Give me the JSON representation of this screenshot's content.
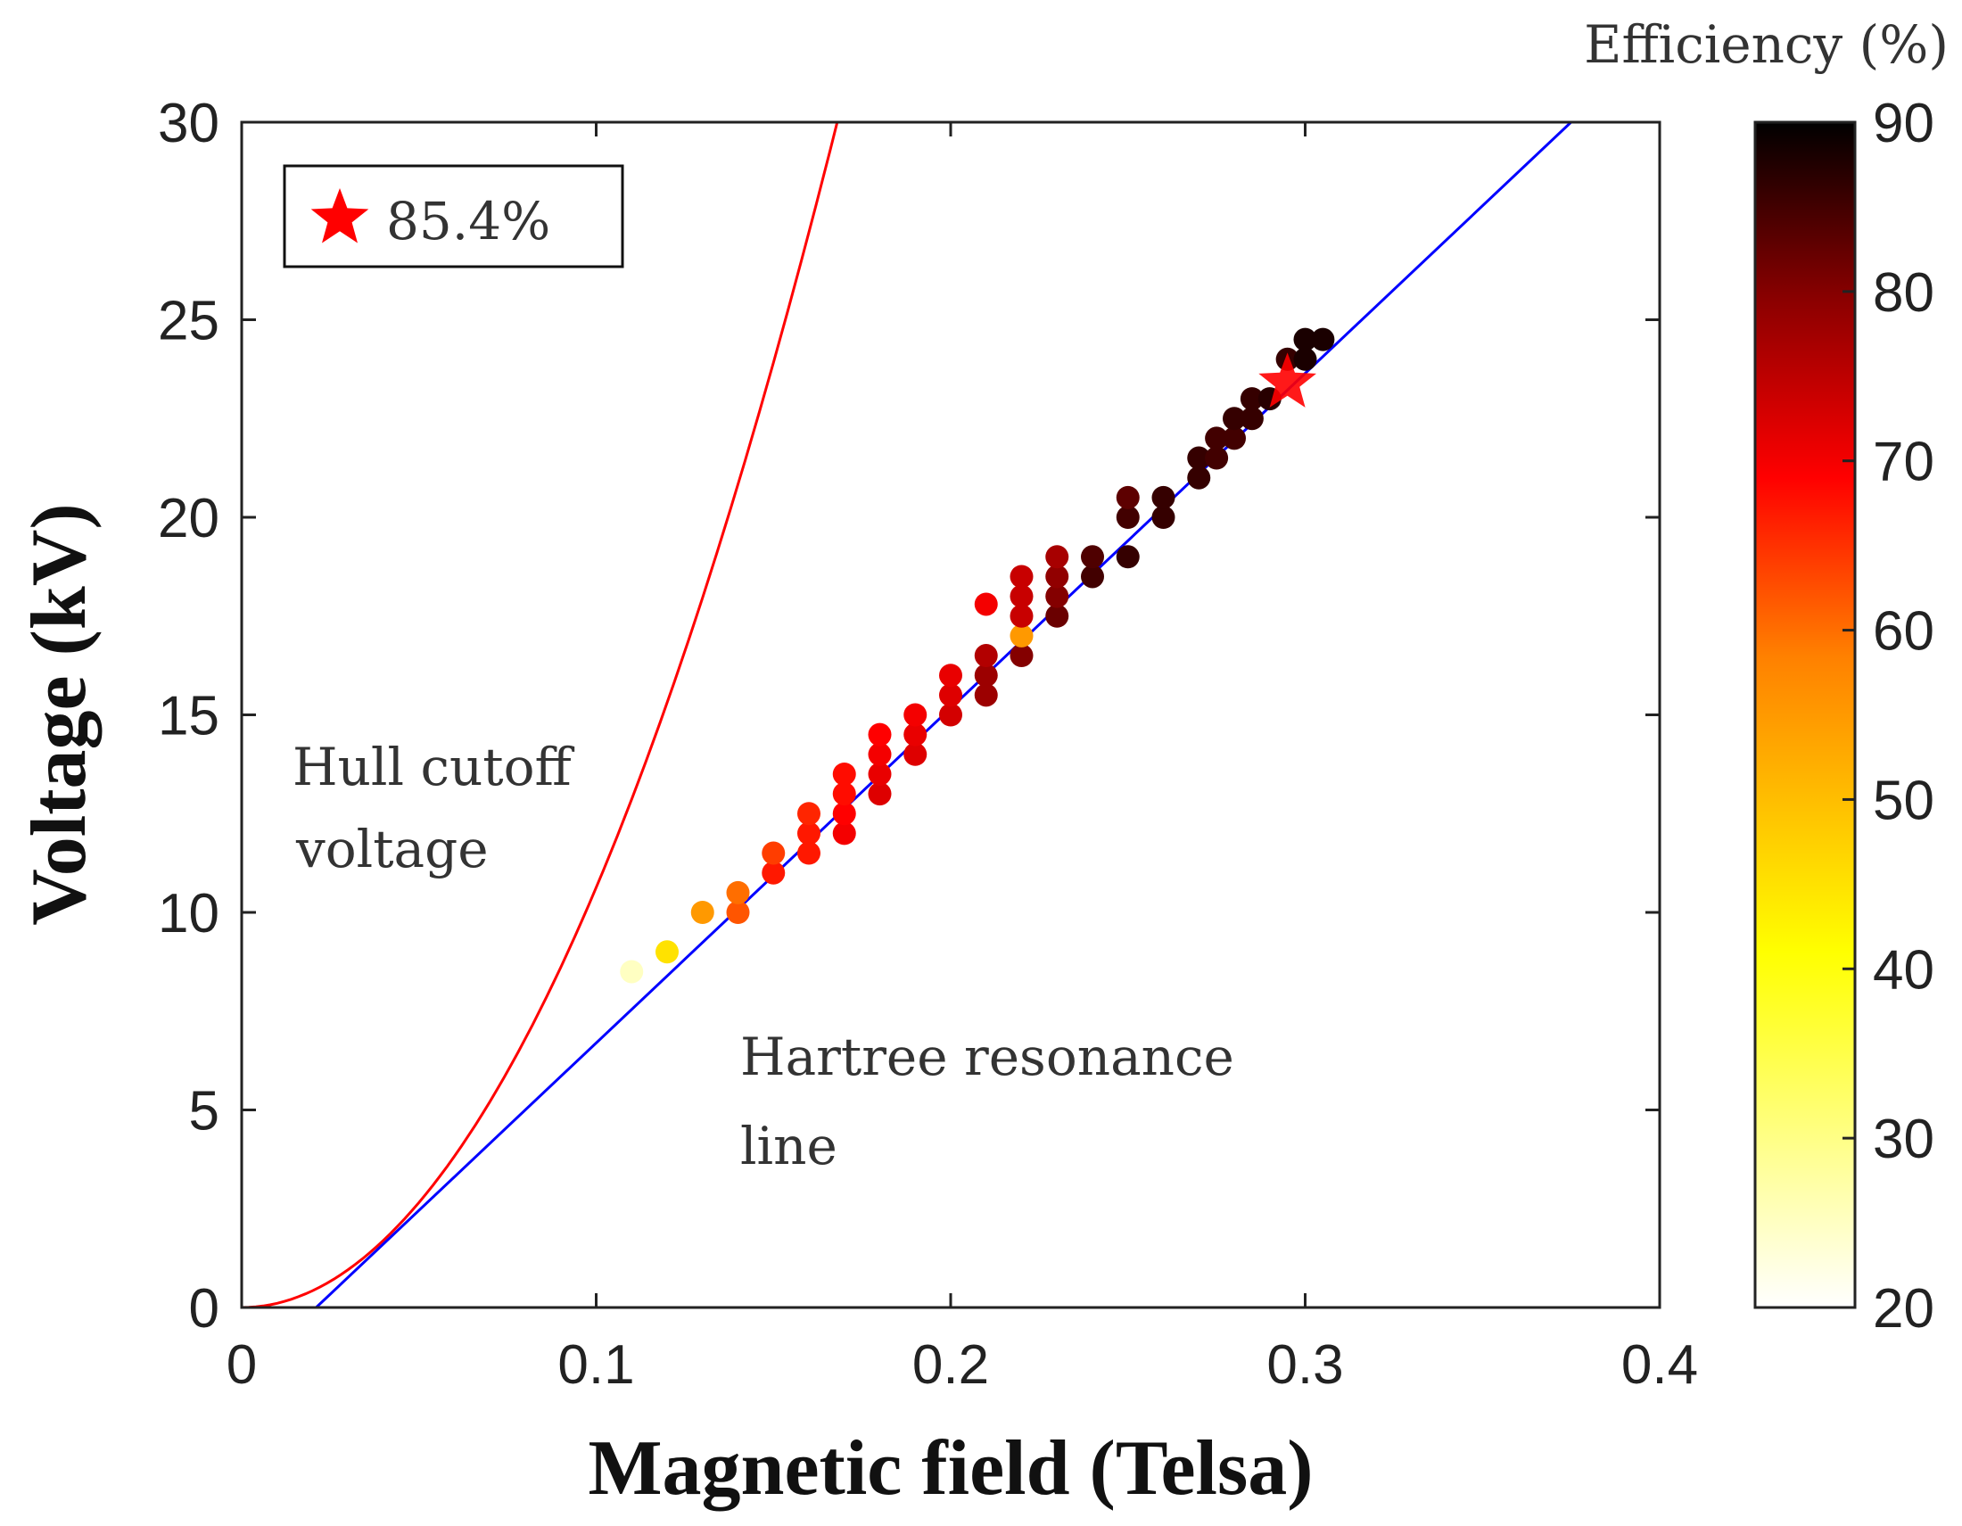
{
  "chart_data": {
    "type": "scatter",
    "xlabel": "Magnetic field (Telsa)",
    "ylabel": "Voltage (kV)",
    "xlim": [
      0,
      0.4
    ],
    "ylim": [
      0,
      30
    ],
    "xticks": [
      "0",
      "0.1",
      "0.2",
      "0.3",
      "0.4"
    ],
    "yticks": [
      "0",
      "5",
      "10",
      "15",
      "20",
      "25",
      "30"
    ],
    "grid": false,
    "colorbar": {
      "title": "Efficiency (%)",
      "range": [
        20,
        90
      ],
      "ticks": [
        "20",
        "30",
        "40",
        "50",
        "60",
        "70",
        "80",
        "90"
      ],
      "colormap": "hot (reversed)"
    },
    "legend": {
      "label": "85.4%",
      "marker": "star",
      "color": "#ff0000",
      "placement": "top-left"
    },
    "best_point": {
      "x": 0.295,
      "y": 23.4,
      "efficiency": 85.4
    },
    "annotations": {
      "hull_line1": "Hull cutoff",
      "hull_line2": "voltage",
      "hartree_line1": "Hartree resonance",
      "hartree_line2": "line"
    },
    "lines": [
      {
        "name": "Hull cutoff voltage",
        "color": "#ff0000",
        "form": "V = 1063 * B^2"
      },
      {
        "name": "Hartree resonance line",
        "color": "#0000ff",
        "points": [
          [
            0.021,
            0
          ],
          [
            0.375,
            30
          ]
        ]
      }
    ],
    "points": [
      [
        0.11,
        8.5,
        25
      ],
      [
        0.12,
        9,
        45
      ],
      [
        0.13,
        10,
        55
      ],
      [
        0.14,
        10,
        62
      ],
      [
        0.14,
        10.5,
        60
      ],
      [
        0.15,
        11,
        67
      ],
      [
        0.15,
        11.5,
        64
      ],
      [
        0.16,
        11.5,
        67
      ],
      [
        0.16,
        12,
        67
      ],
      [
        0.16,
        12.5,
        66
      ],
      [
        0.17,
        12,
        70
      ],
      [
        0.17,
        12.5,
        69
      ],
      [
        0.17,
        13,
        68
      ],
      [
        0.17,
        13.5,
        68
      ],
      [
        0.18,
        13,
        72
      ],
      [
        0.18,
        13.5,
        71
      ],
      [
        0.18,
        14,
        70
      ],
      [
        0.18,
        14.5,
        69
      ],
      [
        0.19,
        14,
        72
      ],
      [
        0.19,
        14.5,
        71
      ],
      [
        0.19,
        15,
        70
      ],
      [
        0.2,
        15,
        73
      ],
      [
        0.2,
        15.5,
        72
      ],
      [
        0.2,
        16,
        71
      ],
      [
        0.21,
        15.5,
        78
      ],
      [
        0.21,
        16,
        78
      ],
      [
        0.21,
        16.5,
        76
      ],
      [
        0.21,
        17.8,
        70
      ],
      [
        0.22,
        16.5,
        80
      ],
      [
        0.22,
        17,
        55
      ],
      [
        0.22,
        17.5,
        74
      ],
      [
        0.22,
        18,
        74
      ],
      [
        0.22,
        18.5,
        74
      ],
      [
        0.23,
        17.5,
        82
      ],
      [
        0.23,
        18,
        80
      ],
      [
        0.23,
        18.5,
        79
      ],
      [
        0.23,
        19,
        77
      ],
      [
        0.24,
        18.5,
        85
      ],
      [
        0.24,
        19,
        84
      ],
      [
        0.25,
        19,
        86
      ],
      [
        0.25,
        20,
        85
      ],
      [
        0.25,
        20.5,
        83
      ],
      [
        0.26,
        20,
        86
      ],
      [
        0.26,
        20.5,
        86
      ],
      [
        0.27,
        21,
        86
      ],
      [
        0.27,
        21.5,
        86
      ],
      [
        0.275,
        21.5,
        85
      ],
      [
        0.275,
        22,
        85
      ],
      [
        0.28,
        22,
        85
      ],
      [
        0.28,
        22.5,
        86
      ],
      [
        0.285,
        22.5,
        86
      ],
      [
        0.285,
        23,
        86
      ],
      [
        0.29,
        23,
        87
      ],
      [
        0.295,
        24,
        86
      ],
      [
        0.3,
        24,
        88
      ],
      [
        0.3,
        24.5,
        88
      ],
      [
        0.305,
        24.5,
        88
      ]
    ]
  }
}
